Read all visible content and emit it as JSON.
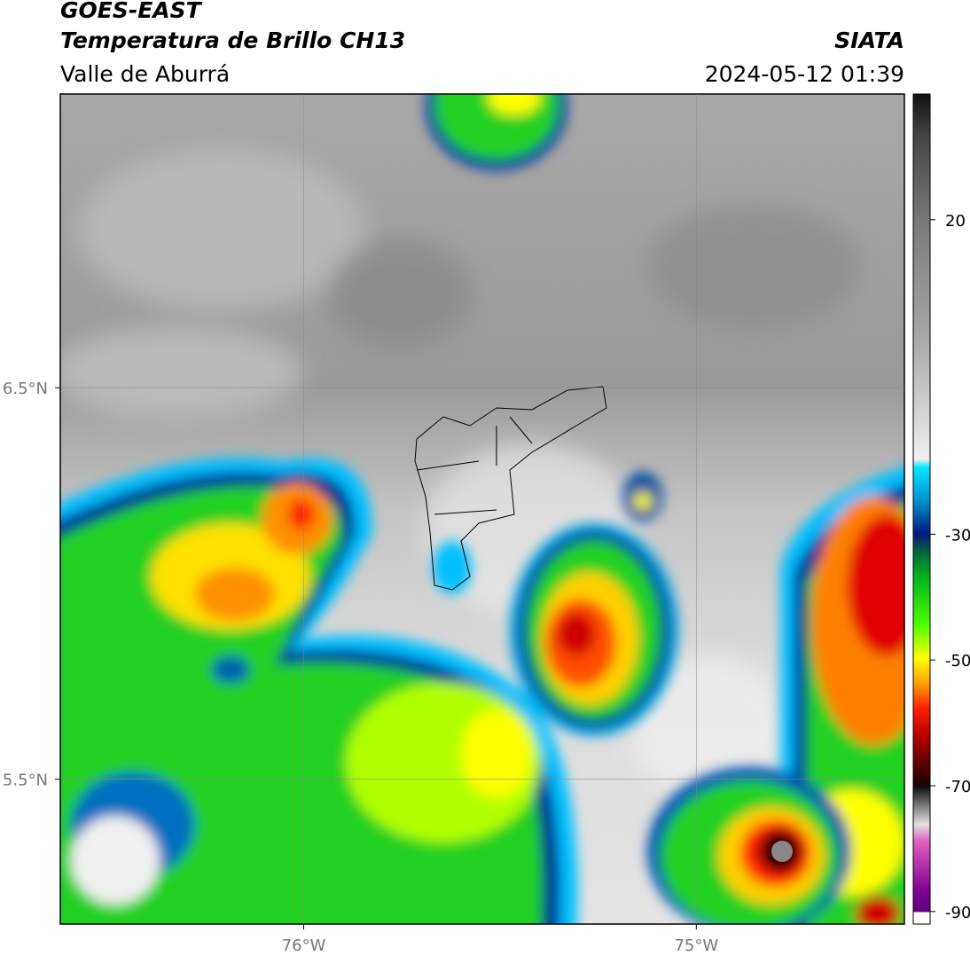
{
  "header": {
    "satellite": "GOES-EAST",
    "product": "Temperatura de Brillo CH13",
    "region": "Valle de Aburrá",
    "source": "SIATA",
    "timestamp": "2024-05-12 01:39"
  },
  "map": {
    "lon_range": [
      -76.62,
      -74.47
    ],
    "lat_range": [
      5.13,
      7.25
    ],
    "lon_ticks": [
      {
        "value": -76,
        "label": "76°W"
      },
      {
        "value": -75,
        "label": "75°W"
      }
    ],
    "lat_ticks": [
      {
        "value": 6.5,
        "label": "6.5°N"
      },
      {
        "value": 5.5,
        "label": "5.5°N"
      }
    ]
  },
  "colorbar": {
    "range": [
      -92,
      40
    ],
    "ticks": [
      20,
      -30,
      -50,
      -70,
      -90
    ]
  }
}
